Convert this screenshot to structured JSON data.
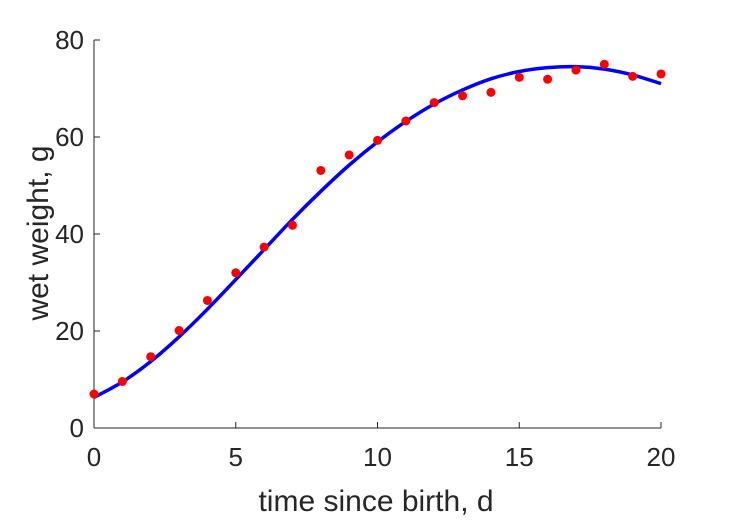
{
  "chart_data": {
    "type": "scatter",
    "title": "",
    "xlabel": "time since birth, d",
    "ylabel": "wet weight, g",
    "xlim": [
      0,
      20
    ],
    "ylim": [
      0,
      80
    ],
    "xticks": [
      0,
      5,
      10,
      15,
      20
    ],
    "yticks": [
      0,
      20,
      40,
      60,
      80
    ],
    "grid": false,
    "legend": "none",
    "series": [
      {
        "kind": "points",
        "color": "#ff0000",
        "x": [
          0,
          1,
          2,
          3,
          4,
          5,
          6,
          7,
          8,
          9,
          10,
          11,
          12,
          13,
          14,
          15,
          16,
          17,
          18,
          19,
          20
        ],
        "y": [
          7.0,
          9.6,
          14.7,
          20.1,
          26.3,
          32.0,
          37.3,
          41.8,
          53.1,
          56.3,
          59.3,
          63.3,
          67.1,
          68.5,
          69.2,
          72.3,
          71.9,
          73.8,
          75.0,
          72.5,
          73.0
        ]
      },
      {
        "kind": "line",
        "color": "#0000ff",
        "x": [
          0,
          1,
          2,
          3,
          4,
          5,
          6,
          7,
          8,
          9,
          10,
          11,
          12,
          13,
          14,
          15,
          16,
          17,
          18,
          19,
          20
        ],
        "y": [
          6.3,
          9.5,
          13.7,
          18.8,
          24.5,
          30.6,
          36.8,
          43.0,
          48.8,
          54.2,
          59.0,
          63.2,
          66.8,
          69.7,
          72.0,
          73.5,
          74.3,
          74.5,
          74.0,
          72.8,
          71.0
        ]
      }
    ]
  }
}
